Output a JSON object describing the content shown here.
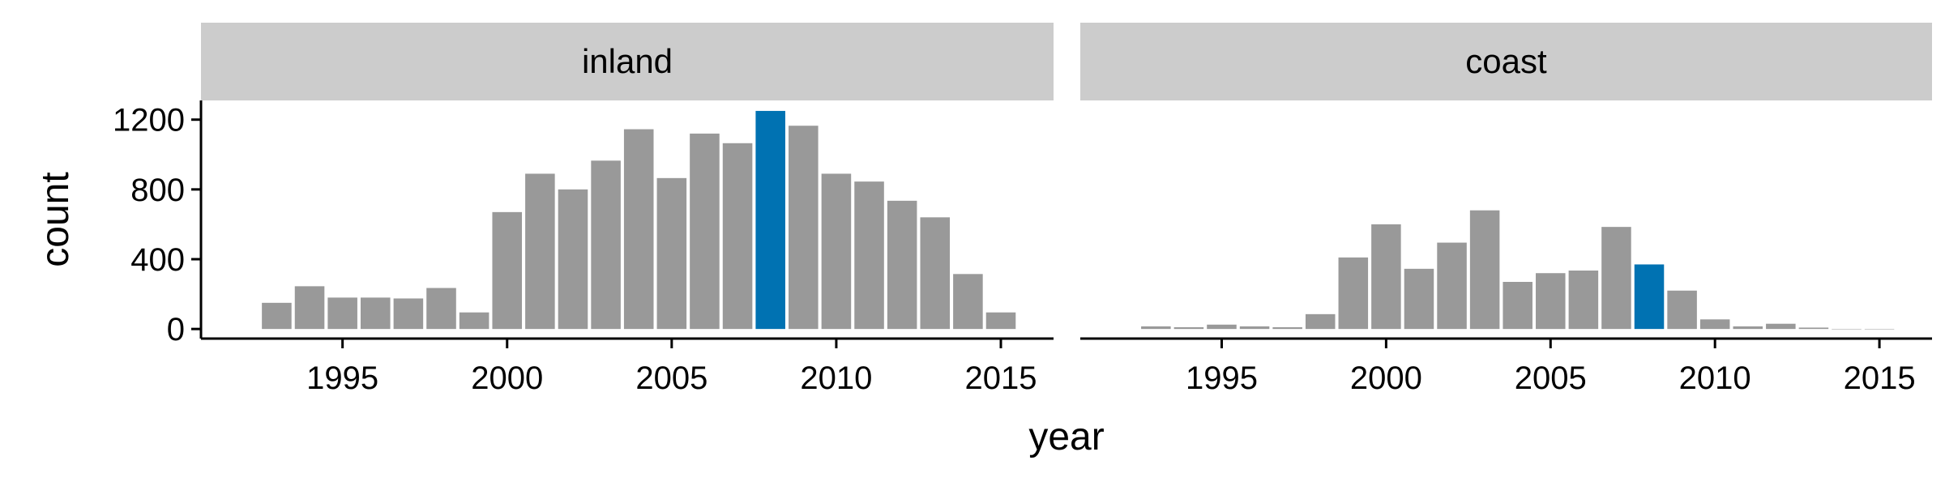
{
  "chart_data": {
    "type": "bar",
    "x": [
      1993,
      1994,
      1995,
      1996,
      1997,
      1998,
      1999,
      2000,
      2001,
      2002,
      2003,
      2004,
      2005,
      2006,
      2007,
      2008,
      2009,
      2010,
      2011,
      2012,
      2013,
      2014,
      2015
    ],
    "xlabel": "year",
    "ylabel": "count",
    "xlim": [
      1990.7,
      2016.6
    ],
    "ylim": [
      -55,
      1310
    ],
    "x_ticks": [
      1995,
      2000,
      2005,
      2010,
      2015
    ],
    "y_ticks": [
      0,
      400,
      800,
      1200
    ],
    "grid": false,
    "legend": "none",
    "colors": {
      "bar": "#999999",
      "highlight": "#0072B2",
      "strip": "#cccccc",
      "axis": "#000000"
    },
    "highlight_year": 2008,
    "panels": [
      {
        "name": "inland",
        "values": [
          150,
          245,
          180,
          180,
          175,
          235,
          95,
          670,
          890,
          800,
          965,
          1145,
          865,
          1120,
          1065,
          1250,
          1165,
          890,
          845,
          735,
          640,
          315,
          95
        ]
      },
      {
        "name": "coast",
        "values": [
          15,
          10,
          25,
          15,
          10,
          85,
          410,
          600,
          345,
          495,
          680,
          270,
          320,
          335,
          585,
          370,
          220,
          55,
          15,
          30,
          8,
          0,
          0
        ]
      }
    ]
  }
}
